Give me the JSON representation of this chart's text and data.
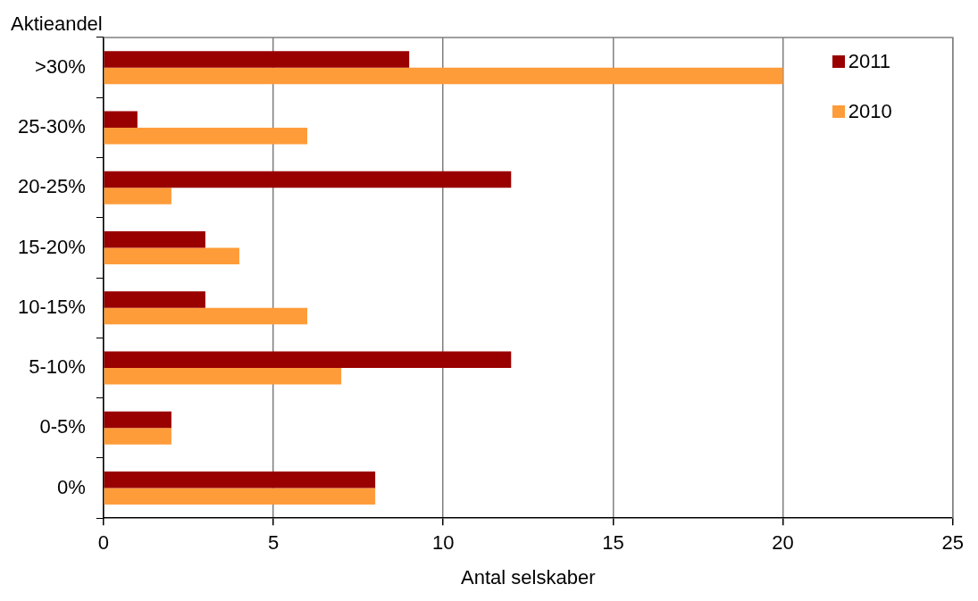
{
  "chart_data": {
    "type": "bar",
    "orientation": "horizontal",
    "xlabel": "Antal selskaber",
    "ylabel": "Aktieandel",
    "categories": [
      ">30%",
      "25-30%",
      "20-25%",
      "15-20%",
      "10-15%",
      "5-10%",
      "0-5%",
      "0%"
    ],
    "series": [
      {
        "name": "2011",
        "color": "#990000",
        "values": [
          9,
          1,
          12,
          3,
          3,
          12,
          2,
          8
        ]
      },
      {
        "name": "2010",
        "color": "#ff9c3a",
        "values": [
          20,
          6,
          2,
          4,
          6,
          7,
          2,
          8
        ]
      }
    ],
    "xlim": [
      0,
      25
    ],
    "xticks": [
      0,
      5,
      10,
      15,
      20,
      25
    ],
    "grid": "x",
    "legend": "top right"
  }
}
